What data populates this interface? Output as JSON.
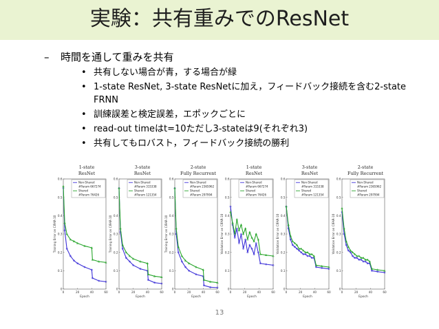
{
  "slide": {
    "title": "実験：共有重みでのResNet",
    "page_number": "13",
    "point": {
      "marker": "–",
      "text": "時間を通して重みを共有"
    },
    "bullets": [
      {
        "marker": "•",
        "text": "共有しない場合が青，する場合が緑"
      },
      {
        "marker": "•",
        "text": "1-state ResNet, 3-state ResNetに加え，フィードバック接続を含む2-state FRNN"
      },
      {
        "marker": "•",
        "text": "訓練誤差と検定誤差，エポックごとに"
      },
      {
        "marker": "•",
        "text": "read-out timeはt=10ただし3-stateは9(それぞれ3)"
      },
      {
        "marker": "•",
        "text": "共有してもロバスト，フィードバック接続の勝利"
      }
    ]
  },
  "colors": {
    "not_shared": "#3b2fd8",
    "shared": "#27a52b",
    "title_bar": "#eaf3d2"
  },
  "chart_data": [
    {
      "type": "line",
      "title": "1-state",
      "subtitle": "ResNet",
      "ylabel": "Training Error on CIFAR-10",
      "xlabel": "Epoch",
      "xlim": [
        0,
        60
      ],
      "ylim": [
        0,
        0.6
      ],
      "x_ticks": [
        "0",
        "20",
        "40",
        "60"
      ],
      "y_ticks": [
        "0",
        "0.1",
        "0.2",
        "0.3",
        "0.4",
        "0.5",
        "0.6"
      ],
      "legend": [
        "Non-Shared",
        "#Param 667274",
        "Shared",
        "#Param 76426"
      ],
      "series": [
        {
          "name": "Non-Shared",
          "x": [
            0,
            2,
            5,
            10,
            15,
            20,
            30,
            40,
            41,
            50,
            60
          ],
          "values": [
            0.55,
            0.32,
            0.22,
            0.18,
            0.155,
            0.14,
            0.12,
            0.105,
            0.06,
            0.045,
            0.04
          ]
        },
        {
          "name": "Shared",
          "x": [
            0,
            2,
            5,
            10,
            15,
            20,
            30,
            40,
            41,
            50,
            60
          ],
          "values": [
            0.56,
            0.36,
            0.3,
            0.27,
            0.26,
            0.25,
            0.235,
            0.225,
            0.16,
            0.15,
            0.145
          ]
        }
      ]
    },
    {
      "type": "line",
      "title": "3-state",
      "subtitle": "ResNet",
      "ylabel": "Training Error on CIFAR-10",
      "xlabel": "Epoch",
      "xlim": [
        0,
        60
      ],
      "ylim": [
        0,
        0.6
      ],
      "x_ticks": [
        "0",
        "20",
        "40",
        "60"
      ],
      "y_ticks": [
        "0",
        "0.1",
        "0.2",
        "0.3",
        "0.4",
        "0.5",
        "0.6"
      ],
      "legend": [
        "Non-Shared",
        "#Param 315338",
        "Shared",
        "#Param 121354"
      ],
      "series": [
        {
          "name": "Non-Shared",
          "x": [
            0,
            2,
            5,
            10,
            15,
            20,
            30,
            40,
            41,
            50,
            60
          ],
          "values": [
            0.55,
            0.31,
            0.22,
            0.17,
            0.15,
            0.13,
            0.11,
            0.1,
            0.05,
            0.035,
            0.03
          ]
        },
        {
          "name": "Shared",
          "x": [
            0,
            2,
            5,
            10,
            15,
            20,
            30,
            40,
            41,
            50,
            60
          ],
          "values": [
            0.55,
            0.33,
            0.24,
            0.2,
            0.18,
            0.165,
            0.15,
            0.14,
            0.08,
            0.07,
            0.065
          ]
        }
      ]
    },
    {
      "type": "line",
      "title": "2-state",
      "subtitle": "Fully Recurrent",
      "ylabel": "Training Error on CIFAR-10",
      "xlabel": "Epoch",
      "xlim": [
        0,
        60
      ],
      "ylim": [
        0,
        0.6
      ],
      "x_ticks": [
        "0",
        "20",
        "40",
        "60"
      ],
      "y_ticks": [
        "0",
        "0.1",
        "0.2",
        "0.3",
        "0.4",
        "0.5",
        "0.6"
      ],
      "legend": [
        "Non-Shared",
        "#Param 2365962",
        "Shared",
        "#Param 297994"
      ],
      "series": [
        {
          "name": "Non-Shared",
          "x": [
            0,
            2,
            5,
            10,
            15,
            20,
            30,
            40,
            41,
            50,
            60
          ],
          "values": [
            0.55,
            0.3,
            0.2,
            0.15,
            0.12,
            0.1,
            0.08,
            0.07,
            0.02,
            0.01,
            0.008
          ]
        },
        {
          "name": "Shared",
          "x": [
            0,
            2,
            5,
            10,
            15,
            20,
            30,
            40,
            41,
            50,
            60
          ],
          "values": [
            0.55,
            0.33,
            0.23,
            0.18,
            0.155,
            0.14,
            0.12,
            0.105,
            0.05,
            0.04,
            0.035
          ]
        }
      ]
    },
    {
      "type": "line",
      "title": "1-state",
      "subtitle": "ResNet",
      "ylabel": "Validation Error on CIFAR-10",
      "xlabel": "Epoch",
      "xlim": [
        0,
        60
      ],
      "ylim": [
        0,
        0.6
      ],
      "x_ticks": [
        "0",
        "20",
        "40",
        "60"
      ],
      "y_ticks": [
        "0",
        "0.1",
        "0.2",
        "0.3",
        "0.4",
        "0.5",
        "0.6"
      ],
      "legend": [
        "Non-Shared",
        "#Param 667274",
        "Shared",
        "#Param 76426"
      ],
      "series": [
        {
          "name": "Non-Shared",
          "x": [
            0,
            3,
            6,
            9,
            12,
            15,
            18,
            21,
            24,
            27,
            30,
            33,
            36,
            39,
            42,
            50,
            60
          ],
          "values": [
            0.45,
            0.35,
            0.28,
            0.33,
            0.25,
            0.3,
            0.22,
            0.27,
            0.2,
            0.24,
            0.22,
            0.19,
            0.25,
            0.2,
            0.14,
            0.135,
            0.13
          ]
        },
        {
          "name": "Shared",
          "x": [
            0,
            3,
            6,
            9,
            12,
            15,
            18,
            21,
            24,
            27,
            30,
            33,
            36,
            39,
            42,
            50,
            60
          ],
          "values": [
            0.42,
            0.36,
            0.3,
            0.38,
            0.32,
            0.35,
            0.3,
            0.33,
            0.27,
            0.31,
            0.28,
            0.26,
            0.3,
            0.27,
            0.19,
            0.185,
            0.18
          ]
        }
      ]
    },
    {
      "type": "line",
      "title": "3-state",
      "subtitle": "ResNet",
      "ylabel": "Validation Error on CIFAR-10",
      "xlabel": "Epoch",
      "xlim": [
        0,
        60
      ],
      "ylim": [
        0,
        0.6
      ],
      "x_ticks": [
        "0",
        "20",
        "40",
        "60"
      ],
      "y_ticks": [
        "0",
        "0.1",
        "0.2",
        "0.3",
        "0.4",
        "0.5",
        "0.6"
      ],
      "legend": [
        "Non-Shared",
        "#Param 315338",
        "Shared",
        "#Param 121354"
      ],
      "series": [
        {
          "name": "Non-Shared",
          "x": [
            0,
            3,
            6,
            9,
            12,
            15,
            18,
            21,
            24,
            27,
            30,
            33,
            36,
            39,
            42,
            50,
            60
          ],
          "values": [
            0.45,
            0.33,
            0.27,
            0.24,
            0.23,
            0.22,
            0.21,
            0.2,
            0.19,
            0.19,
            0.18,
            0.18,
            0.17,
            0.17,
            0.12,
            0.115,
            0.11
          ]
        },
        {
          "name": "Shared",
          "x": [
            0,
            3,
            6,
            9,
            12,
            15,
            18,
            21,
            24,
            27,
            30,
            33,
            36,
            39,
            42,
            50,
            60
          ],
          "values": [
            0.45,
            0.35,
            0.29,
            0.26,
            0.25,
            0.24,
            0.22,
            0.22,
            0.21,
            0.2,
            0.2,
            0.19,
            0.19,
            0.18,
            0.13,
            0.125,
            0.12
          ]
        }
      ]
    },
    {
      "type": "line",
      "title": "2-state",
      "subtitle": "Fully Recurrent",
      "ylabel": "Validation Error on CIFAR-10",
      "xlabel": "Epoch",
      "xlim": [
        0,
        60
      ],
      "ylim": [
        0,
        0.6
      ],
      "x_ticks": [
        "0",
        "20",
        "40",
        "60"
      ],
      "y_ticks": [
        "0",
        "0.1",
        "0.2",
        "0.3",
        "0.4",
        "0.5",
        "0.6"
      ],
      "legend": [
        "Non-Shared",
        "#Param 2365962",
        "Shared",
        "#Param 297994"
      ],
      "series": [
        {
          "name": "Non-Shared",
          "x": [
            0,
            3,
            6,
            9,
            12,
            15,
            18,
            21,
            24,
            27,
            30,
            33,
            36,
            39,
            42,
            50,
            60
          ],
          "values": [
            0.42,
            0.3,
            0.24,
            0.21,
            0.2,
            0.18,
            0.17,
            0.17,
            0.16,
            0.16,
            0.15,
            0.15,
            0.14,
            0.14,
            0.1,
            0.095,
            0.09
          ]
        },
        {
          "name": "Shared",
          "x": [
            0,
            3,
            6,
            9,
            12,
            15,
            18,
            21,
            24,
            27,
            30,
            33,
            36,
            39,
            42,
            50,
            60
          ],
          "values": [
            0.44,
            0.33,
            0.26,
            0.23,
            0.21,
            0.2,
            0.19,
            0.18,
            0.18,
            0.17,
            0.17,
            0.16,
            0.16,
            0.15,
            0.11,
            0.105,
            0.1
          ]
        }
      ]
    }
  ]
}
